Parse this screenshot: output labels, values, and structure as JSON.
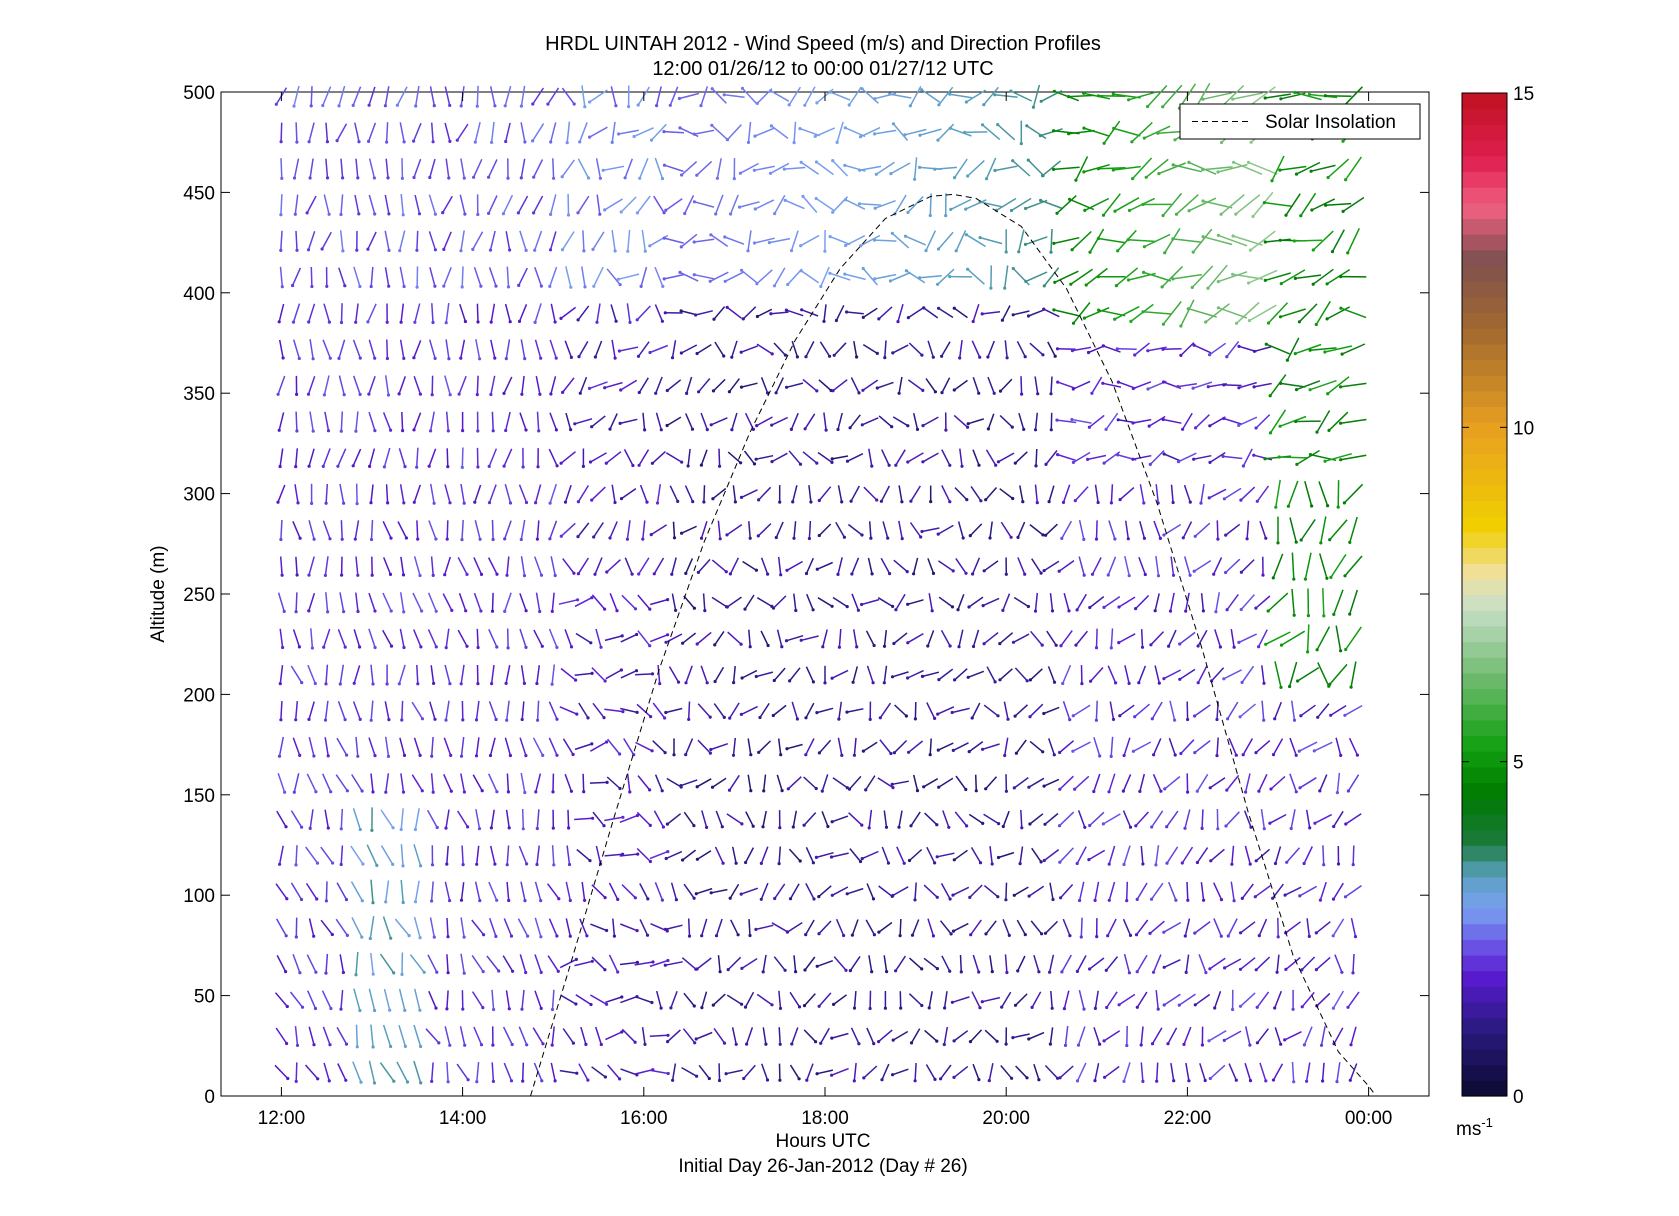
{
  "chart_data": {
    "type": "wind-barb-profile",
    "title": "HRDL UINTAH 2012 - Wind Speed (m/s) and Direction Profiles",
    "subtitle": "12:00 01/26/12 to 00:00 01/27/12  UTC",
    "xlabel": "Hours UTC",
    "x_note": "Initial Day 26-Jan-2012 (Day # 26)",
    "ylabel": "Altitude (m)",
    "xlim": [
      "11:20",
      "00:40"
    ],
    "x_ticks": [
      "12:00",
      "14:00",
      "16:00",
      "18:00",
      "20:00",
      "22:00",
      "00:00"
    ],
    "ylim": [
      0,
      500
    ],
    "y_ticks": [
      "0",
      "50",
      "100",
      "150",
      "200",
      "250",
      "300",
      "350",
      "400",
      "450",
      "500"
    ],
    "colorbar": {
      "range": [
        0,
        15
      ],
      "ticks": [
        "0",
        "5",
        "10",
        "15"
      ],
      "unit_label": "ms",
      "unit_exp": "-1",
      "stops": [
        {
          "v": 0.0,
          "c": "#0a0a30"
        },
        {
          "v": 1.0,
          "c": "#2a1a80"
        },
        {
          "v": 1.8,
          "c": "#5a1ad0"
        },
        {
          "v": 2.3,
          "c": "#6a5ae8"
        },
        {
          "v": 2.8,
          "c": "#7aa0f0"
        },
        {
          "v": 3.3,
          "c": "#5aa0c0"
        },
        {
          "v": 3.8,
          "c": "#1a7a3a"
        },
        {
          "v": 4.5,
          "c": "#007a00"
        },
        {
          "v": 5.2,
          "c": "#10a010"
        },
        {
          "v": 6.2,
          "c": "#6ab86a"
        },
        {
          "v": 7.3,
          "c": "#c8e0c8"
        },
        {
          "v": 7.8,
          "c": "#f0e0a0"
        },
        {
          "v": 8.5,
          "c": "#f0d000"
        },
        {
          "v": 10.0,
          "c": "#e8a020"
        },
        {
          "v": 11.5,
          "c": "#a06830"
        },
        {
          "v": 12.5,
          "c": "#805050"
        },
        {
          "v": 13.3,
          "c": "#f06080"
        },
        {
          "v": 14.0,
          "c": "#e02050"
        },
        {
          "v": 15.0,
          "c": "#c01020"
        }
      ]
    },
    "legend": {
      "position": "top-right",
      "entries": [
        "Solar Insolation"
      ]
    },
    "solar_insolation": {
      "style": "dashed",
      "color": "#000000",
      "x": [
        "14:45",
        "15:10",
        "15:40",
        "16:10",
        "16:40",
        "17:10",
        "17:40",
        "18:10",
        "18:40",
        "19:10",
        "19:25",
        "19:40",
        "20:10",
        "20:40",
        "21:10",
        "21:40",
        "22:10",
        "22:40",
        "23:10",
        "23:40",
        "00:00",
        "00:05"
      ],
      "y": [
        0,
        62,
        138,
        212,
        276,
        330,
        376,
        412,
        437,
        448,
        449,
        447,
        433,
        402,
        356,
        295,
        222,
        142,
        70,
        22,
        5,
        0
      ]
    },
    "wind_field": {
      "time_step_minutes": 10,
      "altitudes_m": [
        12,
        30,
        48,
        66,
        84,
        102,
        120,
        138,
        156,
        174,
        192,
        210,
        228,
        246,
        264,
        282,
        300,
        318,
        336,
        354,
        372,
        390,
        408,
        426,
        444,
        462,
        480,
        498
      ],
      "speed_units": "m/s",
      "direction_convention": "arrow points toward flow"
    }
  }
}
